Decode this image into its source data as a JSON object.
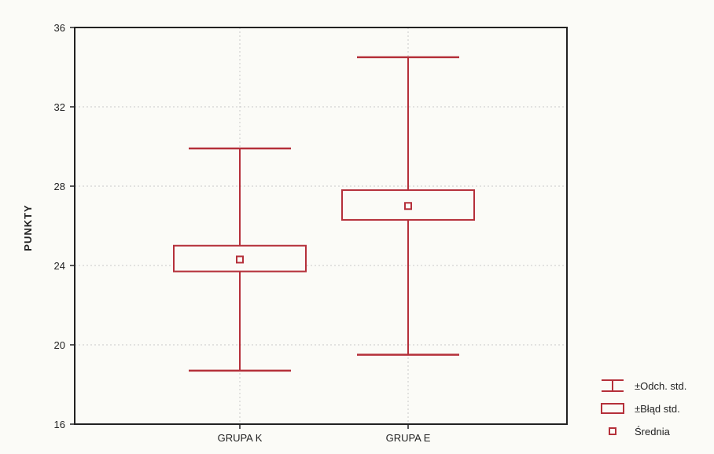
{
  "chart_data": {
    "type": "box",
    "ylabel": "PUNKTY",
    "xlabel": "",
    "ylim": [
      16,
      36
    ],
    "yticks": [
      16,
      20,
      24,
      28,
      32,
      36
    ],
    "grid": true,
    "legend_position": "bottom-right",
    "categories": [
      "GRUPA K",
      "GRUPA E"
    ],
    "series": [
      {
        "category": "GRUPA K",
        "mean": 24.3,
        "se_low": 23.7,
        "se_high": 25.0,
        "sd_low": 18.7,
        "sd_high": 29.9
      },
      {
        "category": "GRUPA E",
        "mean": 27.0,
        "se_low": 26.3,
        "se_high": 27.8,
        "sd_low": 19.5,
        "sd_high": 34.5
      }
    ],
    "legend": {
      "sd": "±Odch. std.",
      "se": "±Błąd std.",
      "mean": "Średnia"
    },
    "colors": {
      "series": "#b5303a",
      "axis": "#222222",
      "grid": "#c8c8c8"
    }
  }
}
